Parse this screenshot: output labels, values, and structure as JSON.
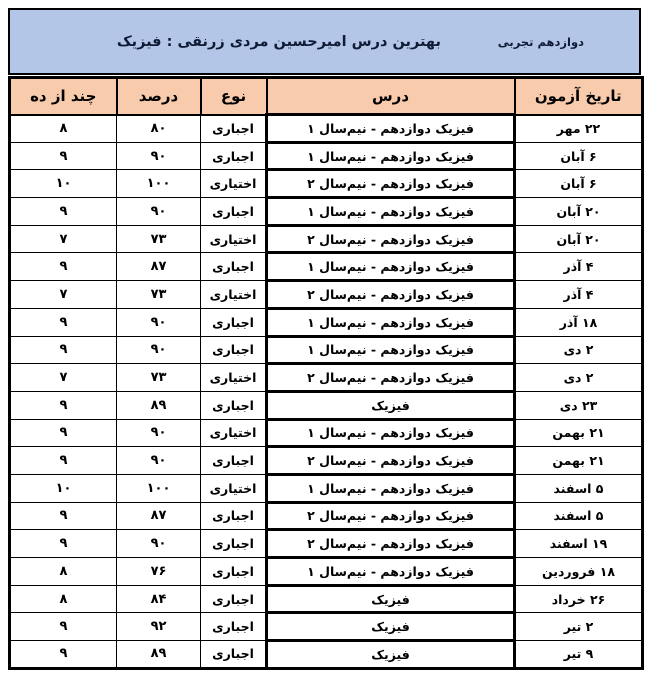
{
  "colors": {
    "title_bg": "#b4c6e7",
    "header_bg": "#f8cbad",
    "border": "#000000",
    "text": "#000000",
    "title_text": "#101c36",
    "page_bg": "#ffffff"
  },
  "header": {
    "grade": "دوازدهم تجربی",
    "title": "بهترین درس امیرحسین مردی زرنقی : فیزیک"
  },
  "table": {
    "columns": [
      "تاریخ آزمون",
      "درس",
      "نوع",
      "درصد",
      "چند از ده"
    ],
    "rows": [
      {
        "date": "۲۲ مهر",
        "lesson": "فیزیک دوازدهم - نیم‌سال ۱",
        "type": "اجباری",
        "percent": "۸۰",
        "score": "۸"
      },
      {
        "date": "۶ آبان",
        "lesson": "فیزیک دوازدهم - نیم‌سال ۱",
        "type": "اجباری",
        "percent": "۹۰",
        "score": "۹"
      },
      {
        "date": "۶ آبان",
        "lesson": "فیزیک دوازدهم - نیم‌سال ۲",
        "type": "اختیاری",
        "percent": "۱۰۰",
        "score": "۱۰"
      },
      {
        "date": "۲۰ آبان",
        "lesson": "فیزیک دوازدهم - نیم‌سال ۱",
        "type": "اجباری",
        "percent": "۹۰",
        "score": "۹"
      },
      {
        "date": "۲۰ آبان",
        "lesson": "فیزیک دوازدهم - نیم‌سال ۲",
        "type": "اختیاری",
        "percent": "۷۳",
        "score": "۷"
      },
      {
        "date": "۴ آذر",
        "lesson": "فیزیک دوازدهم - نیم‌سال ۱",
        "type": "اجباری",
        "percent": "۸۷",
        "score": "۹"
      },
      {
        "date": "۴ آذر",
        "lesson": "فیزیک دوازدهم - نیم‌سال ۲",
        "type": "اختیاری",
        "percent": "۷۳",
        "score": "۷"
      },
      {
        "date": "۱۸ آذر",
        "lesson": "فیزیک دوازدهم - نیم‌سال ۱",
        "type": "اجباری",
        "percent": "۹۰",
        "score": "۹"
      },
      {
        "date": "۲ دی",
        "lesson": "فیزیک دوازدهم - نیم‌سال ۱",
        "type": "اجباری",
        "percent": "۹۰",
        "score": "۹"
      },
      {
        "date": "۲ دی",
        "lesson": "فیزیک دوازدهم - نیم‌سال ۲",
        "type": "اختیاری",
        "percent": "۷۳",
        "score": "۷"
      },
      {
        "date": "۲۳ دی",
        "lesson": "فیزیک",
        "type": "اجباری",
        "percent": "۸۹",
        "score": "۹"
      },
      {
        "date": "۲۱ بهمن",
        "lesson": "فیزیک دوازدهم - نیم‌سال ۱",
        "type": "اختیاری",
        "percent": "۹۰",
        "score": "۹"
      },
      {
        "date": "۲۱ بهمن",
        "lesson": "فیزیک دوازدهم - نیم‌سال ۲",
        "type": "اجباری",
        "percent": "۹۰",
        "score": "۹"
      },
      {
        "date": "۵ اسفند",
        "lesson": "فیزیک دوازدهم - نیم‌سال ۱",
        "type": "اختیاری",
        "percent": "۱۰۰",
        "score": "۱۰"
      },
      {
        "date": "۵ اسفند",
        "lesson": "فیزیک دوازدهم - نیم‌سال ۲",
        "type": "اجباری",
        "percent": "۸۷",
        "score": "۹"
      },
      {
        "date": "۱۹ اسفند",
        "lesson": "فیزیک دوازدهم - نیم‌سال ۲",
        "type": "اجباری",
        "percent": "۹۰",
        "score": "۹"
      },
      {
        "date": "۱۸ فروردین",
        "lesson": "فیزیک دوازدهم - نیم‌سال ۱",
        "type": "اجباری",
        "percent": "۷۶",
        "score": "۸"
      },
      {
        "date": "۲۶ خرداد",
        "lesson": "فیزیک",
        "type": "اجباری",
        "percent": "۸۴",
        "score": "۸"
      },
      {
        "date": "۲ تیر",
        "lesson": "فیزیک",
        "type": "اجباری",
        "percent": "۹۲",
        "score": "۹"
      },
      {
        "date": "۹ تیر",
        "lesson": "فیزیک",
        "type": "اجباری",
        "percent": "۸۹",
        "score": "۹"
      }
    ]
  }
}
